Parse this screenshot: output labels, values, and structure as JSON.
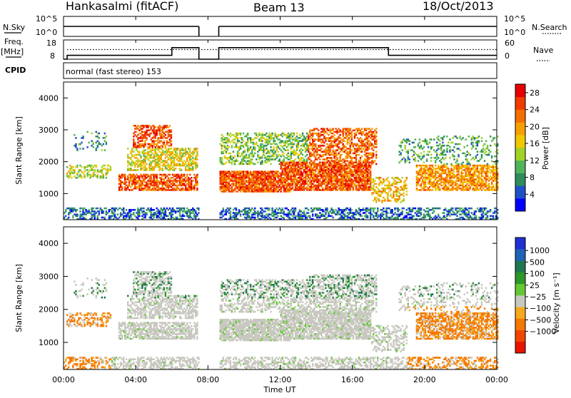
{
  "header": {
    "station": "Hankasalmi (fitACF)",
    "beam": "Beam 13",
    "date": "18/Oct/2013"
  },
  "strip_nsky": {
    "left_label": "N.Sky",
    "left_ticks": [
      "10^5",
      "10^0"
    ],
    "right_label": "N.Search",
    "right_ticks": [
      "10^5",
      "10^0"
    ]
  },
  "strip_freq": {
    "left_label_line1": "Freq.",
    "left_label_line2": "[MHz]",
    "left_ticks": [
      "18",
      "8"
    ],
    "right_label": "Nave",
    "right_ticks": [
      "60",
      "0"
    ]
  },
  "cpid": {
    "label": "CPID",
    "text": "normal (fast stereo) 153"
  },
  "x_axis": {
    "label": "Time UT",
    "ticks": [
      "00:00",
      "04:00",
      "08:00",
      "12:00",
      "16:00",
      "20:00",
      "00:00"
    ]
  },
  "colors": {
    "frame": "#000000",
    "power_scale": [
      "#0000ff",
      "#2050c8",
      "#2d8c5a",
      "#50b45a",
      "#a0d228",
      "#f0c800",
      "#f5a000",
      "#f56e00",
      "#f03c00",
      "#e60000"
    ],
    "velocity_scale": [
      "#2030d2",
      "#1e64b4",
      "#1e7850",
      "#2d9628",
      "#64c832",
      "#c8c8c0",
      "#f5aa1e",
      "#f57800",
      "#f04600",
      "#e61400"
    ]
  },
  "chart_data": [
    {
      "type": "line",
      "panel": "N.Sky / N.Search",
      "x_unit": "hours UT",
      "xlim": [
        0,
        24
      ],
      "data_gap_hours": [
        7.5,
        8.6
      ],
      "series": [
        {
          "x": [
            0,
            7.5
          ],
          "y": [
            2.5,
            2.5
          ]
        },
        {
          "x": [
            8.6,
            24
          ],
          "y": [
            2.5,
            2.5
          ]
        }
      ]
    },
    {
      "type": "line",
      "panel": "Freq / Nave",
      "x_unit": "hours UT",
      "xlim": [
        0,
        24
      ],
      "ylim": [
        8,
        18
      ],
      "series": [
        {
          "x": [
            0,
            0.2,
            0.2,
            6.0,
            6.0,
            7.5,
            7.5,
            8.6,
            8.6,
            18.0,
            18.0,
            24.0
          ],
          "y": [
            8,
            8,
            10,
            10,
            14,
            14,
            8,
            8,
            14,
            14,
            10,
            10
          ]
        },
        {
          "x": [
            0.2,
            24.0
          ],
          "y": [
            13,
            13
          ]
        }
      ]
    },
    {
      "type": "heatmap",
      "panel": "Power",
      "xlabel": "",
      "ylabel": "Slant Range [km]",
      "x_unit": "hours UT",
      "xlim": [
        0,
        24
      ],
      "ylim": [
        180,
        4500
      ],
      "y_ticks": [
        1000,
        2000,
        3000,
        4000
      ],
      "colorbar_label": "Power [dB]",
      "colorbar_ticks": [
        "4",
        "8",
        "12",
        "16",
        "20",
        "24",
        "28"
      ],
      "crange": [
        0,
        30
      ],
      "data_gap_hours": [
        7.5,
        8.6
      ]
    },
    {
      "type": "heatmap",
      "panel": "Velocity",
      "xlabel": "Time UT",
      "ylabel": "Slant Range [km]",
      "x_unit": "hours UT",
      "xlim": [
        0,
        24
      ],
      "ylim": [
        180,
        4500
      ],
      "y_ticks": [
        1000,
        2000,
        3000,
        4000
      ],
      "colorbar_label": "Velocity [m s⁻¹]",
      "colorbar_ticks": [
        "1000",
        "500",
        "100",
        "25",
        "−25",
        "−100",
        "−500",
        "−1000"
      ],
      "data_gap_hours": [
        7.5,
        8.6
      ]
    }
  ]
}
